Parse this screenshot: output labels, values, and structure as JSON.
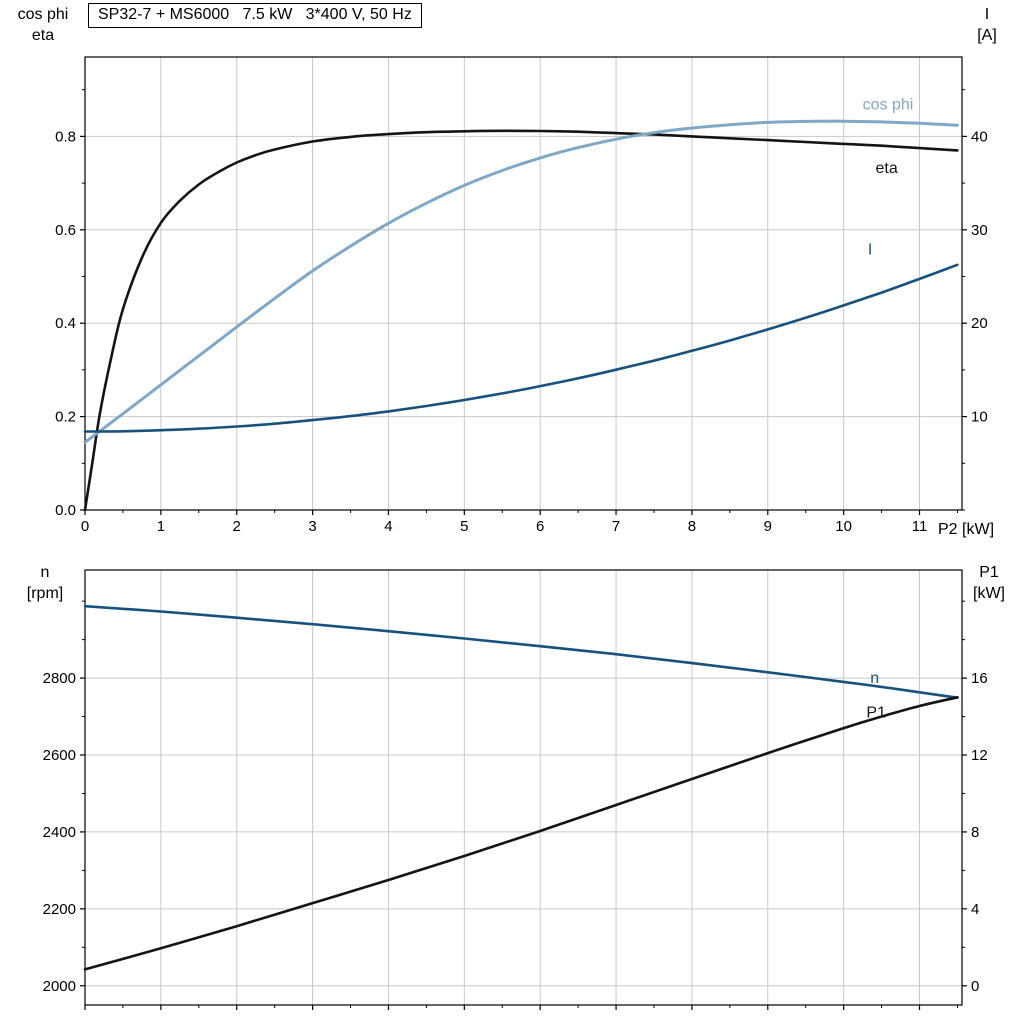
{
  "page": {
    "background": "#ffffff"
  },
  "chart_data": [
    {
      "type": "line",
      "title": "SP32-7 + MS6000   7.5 kW   3*400 V, 50 Hz",
      "x_axis": {
        "label": "P2 [kW]",
        "lim": [
          0,
          11.56
        ],
        "ticks": [
          0,
          1,
          2,
          3,
          4,
          5,
          6,
          7,
          8,
          9,
          10,
          11
        ],
        "tick_labels": [
          "0",
          "1",
          "2",
          "3",
          "4",
          "5",
          "6",
          "7",
          "8",
          "9",
          "10",
          "11"
        ],
        "minor_step": 0.5,
        "show_tick_labels": true
      },
      "left_axis": {
        "label_lines": [
          "cos phi",
          "eta"
        ],
        "lim": [
          0,
          0.97
        ],
        "ticks": [
          0,
          0.2,
          0.4,
          0.6,
          0.8
        ],
        "tick_labels": [
          "0.0",
          "0.2",
          "0.4",
          "0.6",
          "0.8"
        ],
        "minor_step": 0.1
      },
      "right_axis": {
        "label_lines": [
          "I",
          "[A]"
        ],
        "lim": [
          0,
          48.5
        ],
        "ticks": [
          10,
          20,
          30,
          40
        ],
        "tick_labels": [
          "10",
          "20",
          "30",
          "40"
        ],
        "minor_step": 5
      },
      "grid": true,
      "colors": {
        "black": "#141414",
        "light_blue": "#7fa8c7",
        "dark_blue": "#17527e",
        "grid": "#c8c8c8"
      },
      "series": [
        {
          "name": "eta",
          "color": "#141414",
          "axis": "left",
          "width": 2.6,
          "label": {
            "text": "eta",
            "x": 10.42,
            "y": 0.732
          },
          "points": [
            [
              0,
              0
            ],
            [
              0.1,
              0.105
            ],
            [
              0.2,
              0.21
            ],
            [
              0.35,
              0.33
            ],
            [
              0.5,
              0.43
            ],
            [
              0.75,
              0.54
            ],
            [
              1,
              0.615
            ],
            [
              1.25,
              0.662
            ],
            [
              1.5,
              0.697
            ],
            [
              1.75,
              0.723
            ],
            [
              2,
              0.744
            ],
            [
              2.25,
              0.76
            ],
            [
              2.5,
              0.772
            ],
            [
              3,
              0.789
            ],
            [
              3.5,
              0.799
            ],
            [
              4,
              0.805
            ],
            [
              4.5,
              0.809
            ],
            [
              5,
              0.811
            ],
            [
              5.5,
              0.812
            ],
            [
              6,
              0.8115
            ],
            [
              6.5,
              0.81
            ],
            [
              7,
              0.807
            ],
            [
              7.5,
              0.804
            ],
            [
              8,
              0.8
            ],
            [
              8.5,
              0.796
            ],
            [
              9,
              0.792
            ],
            [
              9.5,
              0.788
            ],
            [
              10,
              0.784
            ],
            [
              10.5,
              0.78
            ],
            [
              11,
              0.775
            ],
            [
              11.5,
              0.77
            ]
          ]
        },
        {
          "name": "cos phi",
          "color": "#7fa8c7",
          "axis": "left",
          "width": 3,
          "label": {
            "text": "cos phi",
            "x": 10.25,
            "y": 0.868
          },
          "points": [
            [
              0,
              0.145
            ],
            [
              0.5,
              0.206
            ],
            [
              1,
              0.268
            ],
            [
              1.5,
              0.33
            ],
            [
              2,
              0.392
            ],
            [
              2.5,
              0.453
            ],
            [
              3,
              0.512
            ],
            [
              3.5,
              0.565
            ],
            [
              4,
              0.614
            ],
            [
              4.5,
              0.657
            ],
            [
              5,
              0.695
            ],
            [
              5.5,
              0.727
            ],
            [
              6,
              0.754
            ],
            [
              6.5,
              0.776
            ],
            [
              7,
              0.794
            ],
            [
              7.5,
              0.808
            ],
            [
              8,
              0.818
            ],
            [
              8.5,
              0.825
            ],
            [
              9,
              0.83
            ],
            [
              9.5,
              0.832
            ],
            [
              10,
              0.8325
            ],
            [
              10.5,
              0.831
            ],
            [
              11,
              0.828
            ],
            [
              11.5,
              0.824
            ]
          ]
        },
        {
          "name": "I",
          "color": "#17527e",
          "axis": "right",
          "width": 2.6,
          "label": {
            "text": "I",
            "x": 10.32,
            "y": 27.9
          },
          "points": [
            [
              0,
              8.4
            ],
            [
              0.5,
              8.43
            ],
            [
              1,
              8.54
            ],
            [
              1.5,
              8.7
            ],
            [
              2,
              8.94
            ],
            [
              2.5,
              9.24
            ],
            [
              3,
              9.62
            ],
            [
              3.5,
              10.05
            ],
            [
              4,
              10.56
            ],
            [
              4.5,
              11.13
            ],
            [
              5,
              11.78
            ],
            [
              5.5,
              12.48
            ],
            [
              6,
              13.26
            ],
            [
              6.5,
              14.1
            ],
            [
              7,
              15.02
            ],
            [
              7.5,
              15.99
            ],
            [
              8,
              17.04
            ],
            [
              8.5,
              18.15
            ],
            [
              9,
              19.34
            ],
            [
              9.5,
              20.58
            ],
            [
              10,
              21.9
            ],
            [
              10.5,
              23.28
            ],
            [
              11,
              24.74
            ],
            [
              11.5,
              26.25
            ]
          ]
        }
      ]
    },
    {
      "type": "line",
      "title": "",
      "x_axis": {
        "label": "",
        "lim": [
          0,
          11.56
        ],
        "ticks": [
          0,
          1,
          2,
          3,
          4,
          5,
          6,
          7,
          8,
          9,
          10,
          11
        ],
        "tick_labels": [],
        "minor_step": 0.5,
        "show_tick_labels": false
      },
      "left_axis": {
        "label_lines": [
          "n",
          "[rpm]"
        ],
        "lim": [
          1950,
          3081
        ],
        "ticks": [
          2000,
          2200,
          2400,
          2600,
          2800
        ],
        "tick_labels": [
          "2000",
          "2200",
          "2400",
          "2600",
          "2800"
        ],
        "minor_step": 100
      },
      "right_axis": {
        "label_lines": [
          "P1",
          "[kW]"
        ],
        "lim": [
          -1,
          21.62
        ],
        "ticks": [
          0,
          4,
          8,
          12,
          16
        ],
        "tick_labels": [
          "0",
          "4",
          "8",
          "12",
          "16"
        ],
        "minor_step": 2
      },
      "grid": true,
      "colors": {
        "black": "#141414",
        "dark_blue": "#17527e",
        "grid": "#c8c8c8"
      },
      "series": [
        {
          "name": "n",
          "color": "#17527e",
          "axis": "left",
          "width": 2.6,
          "label": {
            "text": "n",
            "x": 10.35,
            "y": 2800
          },
          "points": [
            [
              0,
              2987
            ],
            [
              1,
              2973
            ],
            [
              2,
              2957
            ],
            [
              3,
              2940
            ],
            [
              4,
              2922
            ],
            [
              5,
              2903
            ],
            [
              6,
              2883
            ],
            [
              7,
              2862
            ],
            [
              8,
              2839
            ],
            [
              9,
              2815
            ],
            [
              10,
              2790
            ],
            [
              10.5,
              2777
            ],
            [
              11,
              2763
            ],
            [
              11.5,
              2749
            ]
          ]
        },
        {
          "name": "P1",
          "color": "#141414",
          "axis": "right",
          "width": 2.6,
          "label": {
            "text": "P1",
            "x": 10.3,
            "y": 14.2
          },
          "points": [
            [
              0,
              0.85
            ],
            [
              1,
              1.95
            ],
            [
              2,
              3.1
            ],
            [
              3,
              4.3
            ],
            [
              4,
              5.5
            ],
            [
              5,
              6.75
            ],
            [
              6,
              8.05
            ],
            [
              7,
              9.4
            ],
            [
              8,
              10.75
            ],
            [
              9,
              12.1
            ],
            [
              10,
              13.4
            ],
            [
              10.5,
              14.0
            ],
            [
              11,
              14.55
            ],
            [
              11.5,
              15.0
            ]
          ]
        }
      ]
    }
  ]
}
